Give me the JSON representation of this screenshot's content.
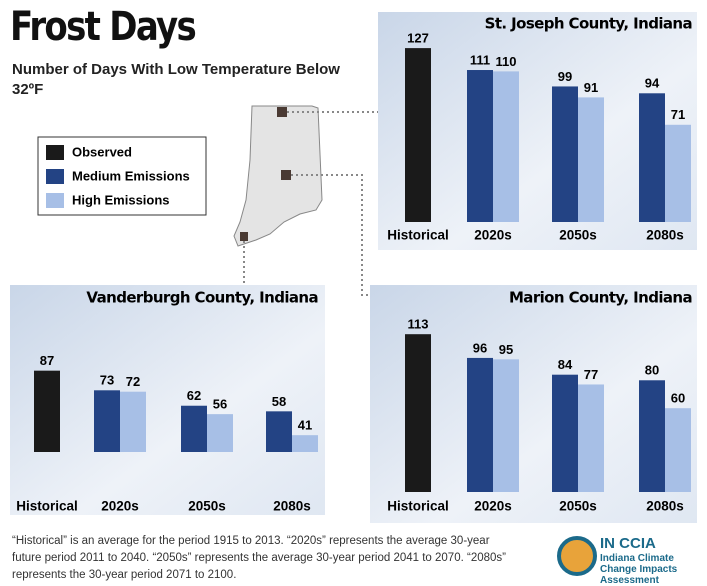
{
  "header": {
    "title": "Frost Days",
    "subtitle": "Number of Days With Low Temperature Below 32ºF"
  },
  "footnote": "“Historical” is an average for the period 1915 to 2013. “2020s” represents the average 30-year future period 2011 to 2040. “2050s” represents the average 30-year period 2041 to 2070. “2080s” represents the 30-year period 2071 to 2100.",
  "logo": {
    "name": "IN CCIA",
    "text": "Indiana Climate Change Impacts Assessment"
  },
  "chart_data": [
    {
      "type": "bar",
      "title": "St. Joseph County, Indiana",
      "categories": [
        "Historical",
        "2020s",
        "2050s",
        "2080s"
      ],
      "series": [
        {
          "name": "Observed",
          "color": "#1a1a1a",
          "values": [
            127,
            null,
            null,
            null
          ]
        },
        {
          "name": "Medium Emissions",
          "color": "#234384",
          "values": [
            null,
            111,
            99,
            94
          ]
        },
        {
          "name": "High Emissions",
          "color": "#a7bfe6",
          "values": [
            null,
            110,
            91,
            71
          ]
        }
      ],
      "ylim": [
        0,
        130
      ]
    },
    {
      "type": "bar",
      "title": "Vanderburgh County, Indiana",
      "categories": [
        "Historical",
        "2020s",
        "2050s",
        "2080s"
      ],
      "series": [
        {
          "name": "Observed",
          "color": "#1a1a1a",
          "values": [
            87,
            null,
            null,
            null
          ]
        },
        {
          "name": "Medium Emissions",
          "color": "#234384",
          "values": [
            null,
            73,
            62,
            58
          ]
        },
        {
          "name": "High Emissions",
          "color": "#a7bfe6",
          "values": [
            null,
            72,
            56,
            41
          ]
        }
      ],
      "ylim": [
        29,
        116
      ]
    },
    {
      "type": "bar",
      "title": "Marion County, Indiana",
      "categories": [
        "Historical",
        "2020s",
        "2050s",
        "2080s"
      ],
      "series": [
        {
          "name": "Observed",
          "color": "#1a1a1a",
          "values": [
            113,
            null,
            null,
            null
          ]
        },
        {
          "name": "Medium Emissions",
          "color": "#234384",
          "values": [
            null,
            96,
            84,
            80
          ]
        },
        {
          "name": "High Emissions",
          "color": "#a7bfe6",
          "values": [
            null,
            95,
            77,
            60
          ]
        }
      ],
      "ylim": [
        0,
        116
      ]
    }
  ]
}
